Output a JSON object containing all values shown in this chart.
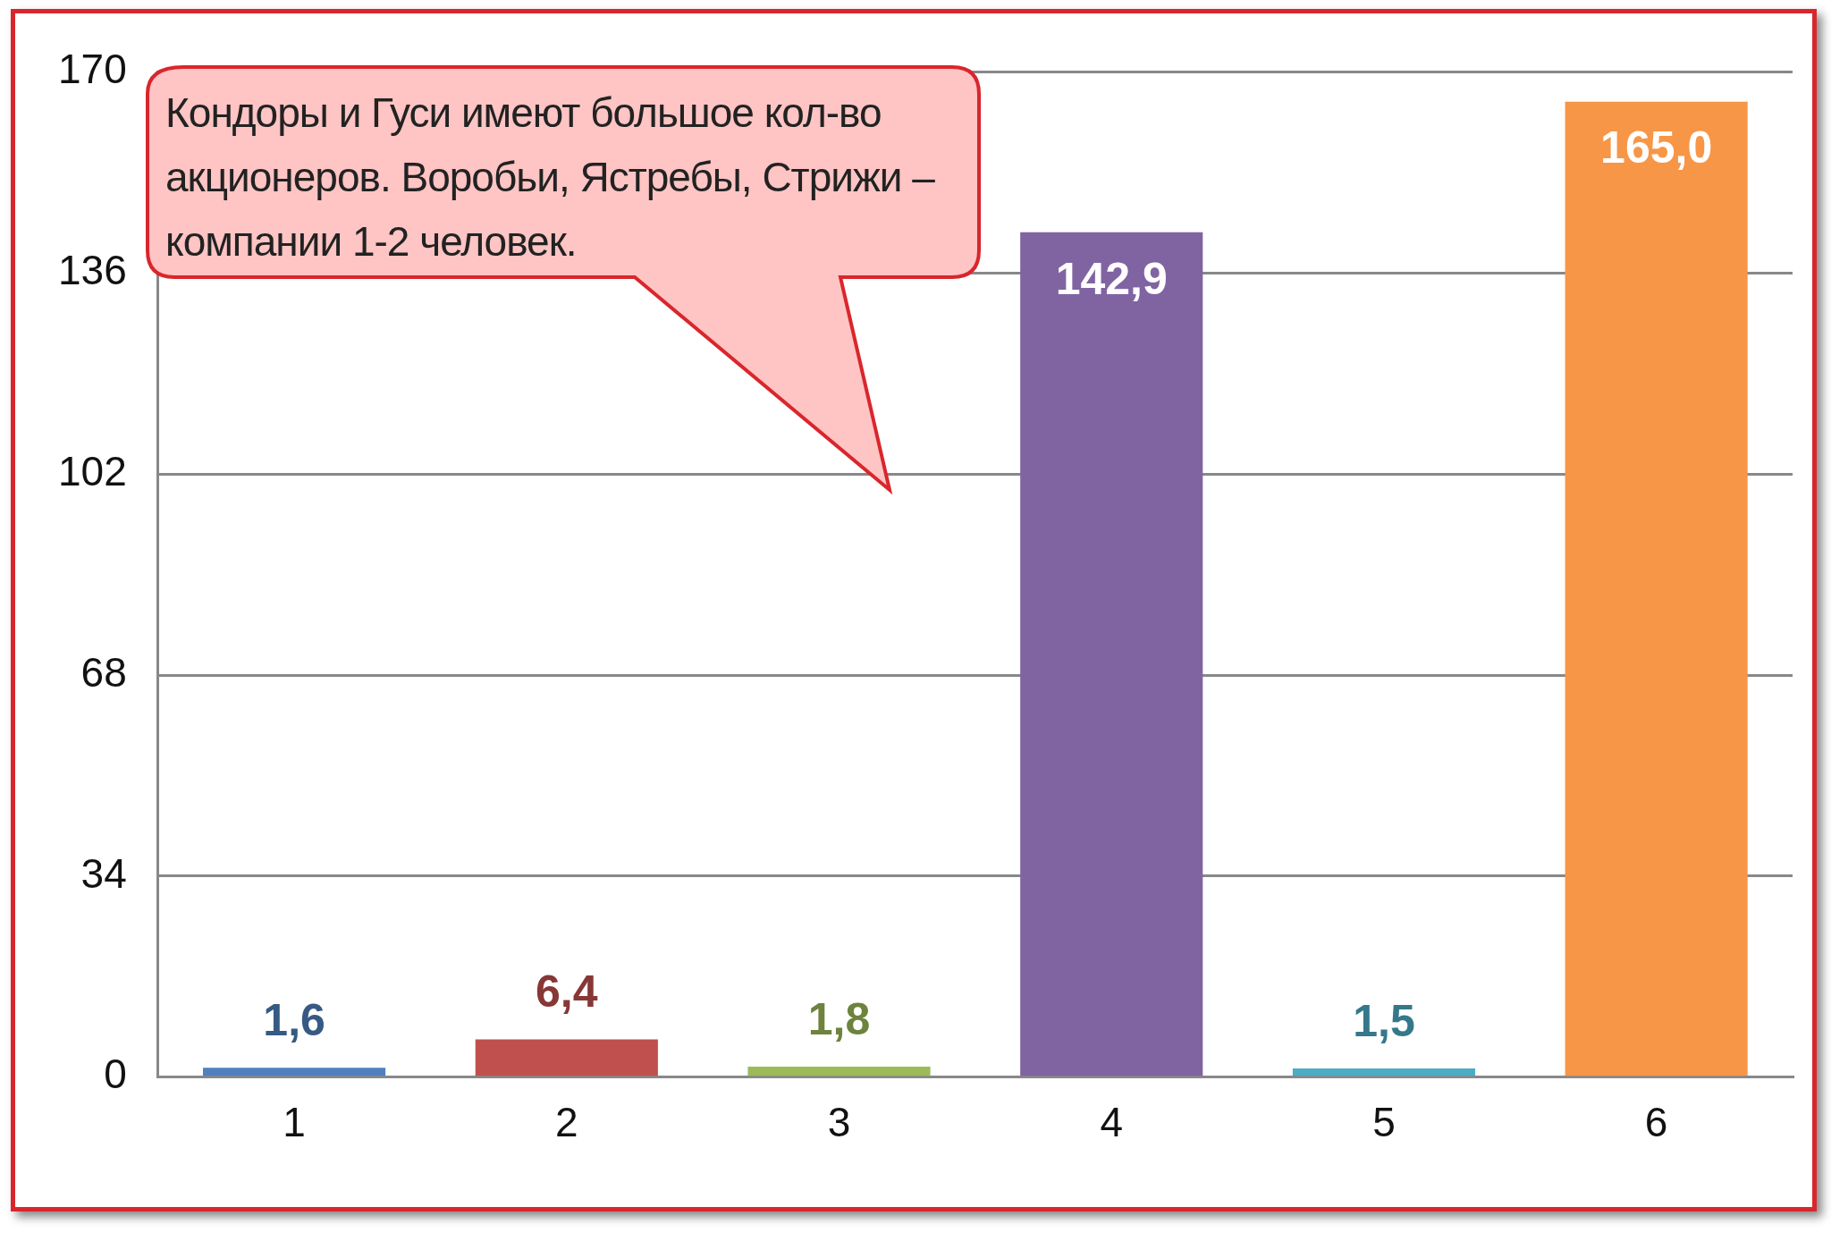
{
  "chart_data": {
    "type": "bar",
    "categories": [
      "1",
      "2",
      "3",
      "4",
      "5",
      "6"
    ],
    "values": [
      1.6,
      6.4,
      1.8,
      142.9,
      1.5,
      165.0
    ],
    "value_labels": [
      "1,6",
      "6,4",
      "1,8",
      "142,9",
      "1,5",
      "165,0"
    ],
    "colors": [
      "#4f81bd",
      "#c0504d",
      "#9bbb59",
      "#8064a2",
      "#4bacc6",
      "#f79646"
    ],
    "ylim": [
      0,
      170
    ],
    "yticks": [
      0,
      34,
      68,
      102,
      136,
      170
    ],
    "grid": "y",
    "legend": false,
    "annotations": [
      "Кондоры и Гуси имеют большое кол-во акционеров. Воробьи, Ястребы, Стрижи – компании 1-2 человек."
    ]
  }
}
